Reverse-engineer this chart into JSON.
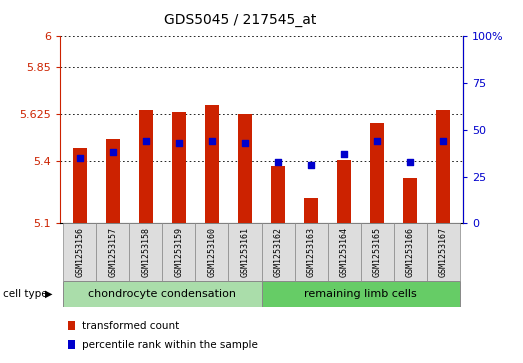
{
  "title": "GDS5045 / 217545_at",
  "samples": [
    "GSM1253156",
    "GSM1253157",
    "GSM1253158",
    "GSM1253159",
    "GSM1253160",
    "GSM1253161",
    "GSM1253162",
    "GSM1253163",
    "GSM1253164",
    "GSM1253165",
    "GSM1253166",
    "GSM1253167"
  ],
  "transformed_count": [
    5.46,
    5.505,
    5.645,
    5.635,
    5.67,
    5.625,
    5.375,
    5.22,
    5.405,
    5.585,
    5.32,
    5.645
  ],
  "percentile": [
    35,
    38,
    44,
    43,
    44,
    43,
    33,
    31,
    37,
    44,
    33,
    44
  ],
  "ymin": 5.1,
  "ymax": 6.0,
  "yticks": [
    5.1,
    5.4,
    5.625,
    5.85,
    6.0
  ],
  "ytick_labels": [
    "5.1",
    "5.4",
    "5.625",
    "5.85",
    "6"
  ],
  "y2min": 0,
  "y2max": 100,
  "y2ticks": [
    0,
    25,
    50,
    75,
    100
  ],
  "y2tick_labels": [
    "0",
    "25",
    "50",
    "75",
    "100%"
  ],
  "bar_color": "#cc2200",
  "dot_color": "#0000cc",
  "group1_label": "chondrocyte condensation",
  "group2_label": "remaining limb cells",
  "group1_color": "#aaddaa",
  "group2_color": "#66cc66",
  "group1_n": 6,
  "group2_n": 6,
  "cell_type_label": "cell type",
  "legend1": "transformed count",
  "legend2": "percentile rank within the sample",
  "background_color": "#ffffff",
  "bar_bottom": 5.1,
  "bar_width": 0.45,
  "dot_size": 18
}
